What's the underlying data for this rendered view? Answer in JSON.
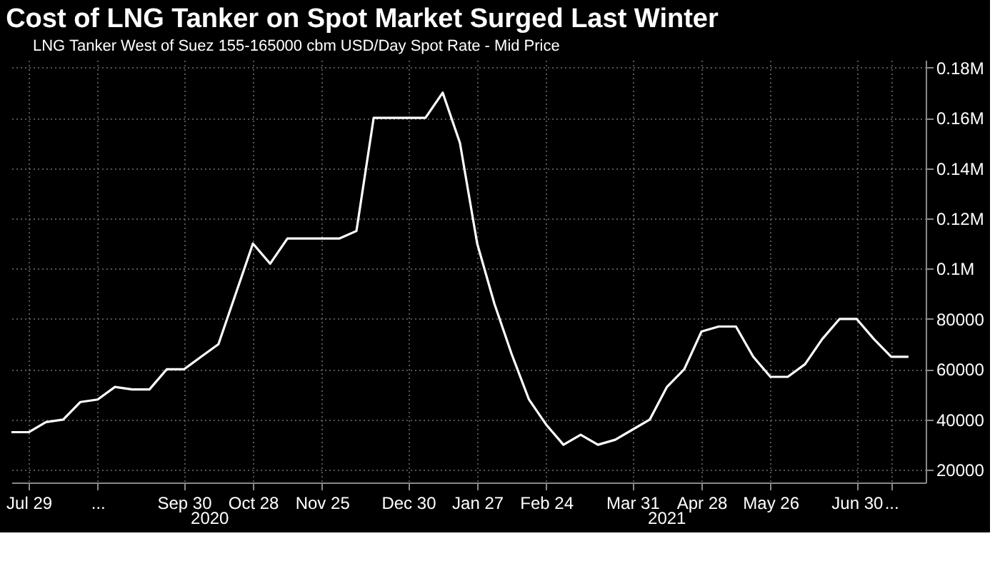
{
  "chart_data": {
    "type": "line",
    "title": "Cost of LNG Tanker on Spot Market Surged Last Winter",
    "x": [
      "2020-07-22",
      "2020-07-29",
      "2020-08-05",
      "2020-08-12",
      "2020-08-19",
      "2020-08-26",
      "2020-09-02",
      "2020-09-09",
      "2020-09-16",
      "2020-09-23",
      "2020-09-30",
      "2020-10-07",
      "2020-10-14",
      "2020-10-21",
      "2020-10-28",
      "2020-11-04",
      "2020-11-11",
      "2020-11-18",
      "2020-11-25",
      "2020-12-02",
      "2020-12-09",
      "2020-12-16",
      "2020-12-23",
      "2020-12-30",
      "2021-01-06",
      "2021-01-13",
      "2021-01-20",
      "2021-01-27",
      "2021-02-03",
      "2021-02-10",
      "2021-02-17",
      "2021-02-24",
      "2021-03-03",
      "2021-03-10",
      "2021-03-17",
      "2021-03-24",
      "2021-03-31",
      "2021-04-07",
      "2021-04-14",
      "2021-04-21",
      "2021-04-28",
      "2021-05-05",
      "2021-05-12",
      "2021-05-19",
      "2021-05-26",
      "2021-06-02",
      "2021-06-09",
      "2021-06-16",
      "2021-06-23",
      "2021-06-30",
      "2021-07-07",
      "2021-07-14",
      "2021-07-21"
    ],
    "series": [
      {
        "name": "LNG Tanker West of Suez 155-165000 cbm USD/Day Spot Rate - Mid Price",
        "color": "#ffffff",
        "values": [
          35000,
          35000,
          39000,
          40000,
          47000,
          48000,
          53000,
          52000,
          52000,
          60000,
          60000,
          65000,
          70000,
          90000,
          110000,
          102000,
          112000,
          112000,
          112000,
          112000,
          115000,
          160000,
          160000,
          160000,
          160000,
          170000,
          150000,
          110000,
          86000,
          66000,
          48000,
          38000,
          30000,
          34000,
          30000,
          32000,
          36000,
          40000,
          53000,
          60000,
          75000,
          77000,
          77000,
          65000,
          57000,
          57000,
          62000,
          72000,
          80000,
          80000,
          72000,
          65000,
          65000
        ]
      }
    ],
    "xlim": [
      "2020-07-22",
      "2021-07-28"
    ],
    "xticks": [
      {
        "value": "2020-07-29",
        "label": "Jul 29"
      },
      {
        "value": "2020-08-26",
        "label": "..."
      },
      {
        "value": "2020-09-30",
        "label": "Sep 30"
      },
      {
        "value": "2020-10-28",
        "label": "Oct 28"
      },
      {
        "value": "2020-11-25",
        "label": "Nov 25"
      },
      {
        "value": "2020-12-30",
        "label": "Dec 30"
      },
      {
        "value": "2021-01-27",
        "label": "Jan 27"
      },
      {
        "value": "2021-02-24",
        "label": "Feb 24"
      },
      {
        "value": "2021-03-31",
        "label": "Mar 31"
      },
      {
        "value": "2021-04-28",
        "label": "Apr 28"
      },
      {
        "value": "2021-05-26",
        "label": "May 26"
      },
      {
        "value": "2021-06-30",
        "label": "Jun 30"
      },
      {
        "value": "2021-07-14",
        "label": "..."
      }
    ],
    "ylim": [
      15000,
      183000
    ],
    "yticks": [
      {
        "value": 20000,
        "label": "20000"
      },
      {
        "value": 40000,
        "label": "40000"
      },
      {
        "value": 60000,
        "label": "60000"
      },
      {
        "value": 80000,
        "label": "80000"
      },
      {
        "value": 100000,
        "label": "0.1M"
      },
      {
        "value": 120000,
        "label": "0.12M"
      },
      {
        "value": 140000,
        "label": "0.14M"
      },
      {
        "value": 160000,
        "label": "0.16M"
      },
      {
        "value": 180000,
        "label": "0.18M"
      }
    ],
    "annotations": [
      "2020",
      "2021"
    ],
    "grid": true,
    "legend": "top left",
    "marker": "none",
    "line_style": "solid"
  }
}
